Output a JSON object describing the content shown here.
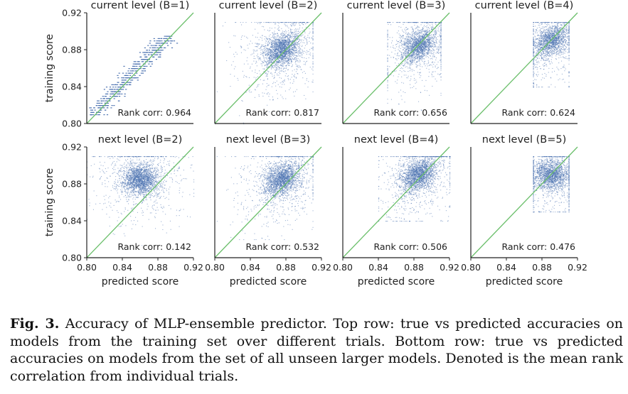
{
  "figure": {
    "caption_label": "Fig. 3.",
    "caption_text": "Accuracy of MLP-ensemble predictor. Top row: true vs predicted accuracies on models from the training set over different trials. Bottom row: true vs predicted accuracies on models from the set of all unseen larger models. Denoted is the mean rank correlation from individual trials."
  },
  "colors": {
    "points": "#4c72b0",
    "diagonal": "#6bbf6b",
    "axes": "#222222"
  },
  "chart_data": [
    {
      "type": "scatter",
      "title": "current level (B=1)",
      "xlabel": "",
      "ylabel": "training score",
      "xlim": [
        0.8,
        0.92
      ],
      "ylim": [
        0.8,
        0.92
      ],
      "xticks": [],
      "yticks": [
        "0.80",
        "0.84",
        "0.88",
        "0.92"
      ],
      "annotation": "Rank corr: 0.964",
      "rank_corr": 0.964,
      "cluster": {
        "x_range": [
          0.805,
          0.895
        ],
        "y_range": [
          0.81,
          0.895
        ],
        "pattern": "tight horizontal-banded near diagonal",
        "n": 500
      }
    },
    {
      "type": "scatter",
      "title": "current level (B=2)",
      "xlabel": "",
      "ylabel": "",
      "xlim": [
        0.8,
        0.92
      ],
      "ylim": [
        0.8,
        0.92
      ],
      "xticks": [],
      "yticks": [],
      "annotation": "Rank corr: 0.817",
      "rank_corr": 0.817,
      "cluster": {
        "x_center": 0.875,
        "y_center": 0.88,
        "x_range": [
          0.8,
          0.91
        ],
        "y_range": [
          0.8,
          0.91
        ],
        "n": 2500
      }
    },
    {
      "type": "scatter",
      "title": "current level (B=3)",
      "xlabel": "",
      "ylabel": "",
      "xlim": [
        0.8,
        0.92
      ],
      "ylim": [
        0.8,
        0.92
      ],
      "xticks": [],
      "yticks": [],
      "annotation": "Rank corr: 0.656",
      "rank_corr": 0.656,
      "cluster": {
        "x_center": 0.885,
        "y_center": 0.885,
        "x_range": [
          0.85,
          0.91
        ],
        "y_range": [
          0.81,
          0.91
        ],
        "n": 2200
      }
    },
    {
      "type": "scatter",
      "title": "current level (B=4)",
      "xlabel": "",
      "ylabel": "",
      "xlim": [
        0.8,
        0.92
      ],
      "ylim": [
        0.8,
        0.92
      ],
      "xticks": [],
      "yticks": [],
      "annotation": "Rank corr: 0.624",
      "rank_corr": 0.624,
      "cluster": {
        "x_center": 0.89,
        "y_center": 0.89,
        "x_range": [
          0.87,
          0.91
        ],
        "y_range": [
          0.84,
          0.91
        ],
        "n": 2000
      }
    },
    {
      "type": "scatter",
      "title": "next level (B=2)",
      "xlabel": "predicted score",
      "ylabel": "training score",
      "xlim": [
        0.8,
        0.92
      ],
      "ylim": [
        0.8,
        0.92
      ],
      "xticks": [
        "0.80",
        "0.84",
        "0.88",
        "0.92"
      ],
      "yticks": [
        "0.80",
        "0.84",
        "0.88",
        "0.92"
      ],
      "annotation": "Rank corr: 0.142",
      "rank_corr": 0.142,
      "cluster": {
        "x_center": 0.86,
        "y_center": 0.885,
        "x_range": [
          0.8,
          0.92
        ],
        "y_range": [
          0.8,
          0.91
        ],
        "n": 2500
      }
    },
    {
      "type": "scatter",
      "title": "next level (B=3)",
      "xlabel": "predicted score",
      "ylabel": "",
      "xlim": [
        0.8,
        0.92
      ],
      "ylim": [
        0.8,
        0.92
      ],
      "xticks": [
        "0.80",
        "0.84",
        "0.88",
        "0.92"
      ],
      "yticks": [],
      "annotation": "Rank corr: 0.532",
      "rank_corr": 0.532,
      "cluster": {
        "x_center": 0.875,
        "y_center": 0.885,
        "x_range": [
          0.8,
          0.91
        ],
        "y_range": [
          0.82,
          0.91
        ],
        "n": 2500
      }
    },
    {
      "type": "scatter",
      "title": "next level (B=4)",
      "xlabel": "predicted score",
      "ylabel": "",
      "xlim": [
        0.8,
        0.92
      ],
      "ylim": [
        0.8,
        0.92
      ],
      "xticks": [
        "0.80",
        "0.84",
        "0.88",
        "0.92"
      ],
      "yticks": [],
      "annotation": "Rank corr: 0.506",
      "rank_corr": 0.506,
      "cluster": {
        "x_center": 0.885,
        "y_center": 0.89,
        "x_range": [
          0.84,
          0.92
        ],
        "y_range": [
          0.84,
          0.91
        ],
        "n": 2500
      }
    },
    {
      "type": "scatter",
      "title": "next level (B=5)",
      "xlabel": "predicted score",
      "ylabel": "",
      "xlim": [
        0.8,
        0.92
      ],
      "ylim": [
        0.8,
        0.92
      ],
      "xticks": [
        "0.80",
        "0.84",
        "0.88",
        "0.92"
      ],
      "yticks": [],
      "annotation": "Rank corr: 0.476",
      "rank_corr": 0.476,
      "cluster": {
        "x_center": 0.89,
        "y_center": 0.89,
        "x_range": [
          0.87,
          0.91
        ],
        "y_range": [
          0.85,
          0.91
        ],
        "n": 2200
      }
    }
  ]
}
